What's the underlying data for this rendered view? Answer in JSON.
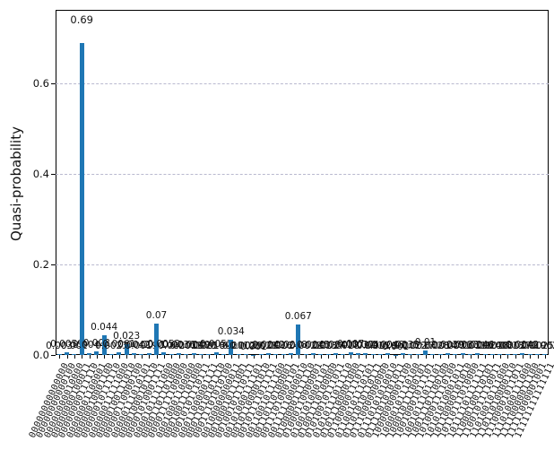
{
  "chart_data": {
    "type": "bar",
    "title": "",
    "xlabel": "",
    "ylabel": "Quasi-probability",
    "ylim": [
      0,
      0.762
    ],
    "grid": "horizontal-dashed",
    "legend": "none",
    "bar_color": "#1f77b4",
    "grid_color": "#b9b9cf",
    "ytick_values": [
      0.0,
      0.2,
      0.4,
      0.6
    ],
    "ytick_labels": [
      "0.0",
      "0.2",
      "0.4",
      "0.6"
    ],
    "x_tick_rotation_deg": 65,
    "categories": [
      "00000000000000",
      "00000000000100",
      "00000000010000",
      "00000000100011",
      "00000000111110",
      "00000001100001",
      "00000010001100",
      "00000010111110",
      "00000011111000",
      "00000100111010",
      "00000110000100",
      "00000111010101",
      "00001000101110",
      "00001010001111",
      "00001011111000",
      "00001101101000",
      "00001111100000",
      "00010001100000",
      "00010011101000",
      "00010101110111",
      "00011000001111",
      "00011010101110",
      "00011101010100",
      "00100000000011",
      "00100010111001",
      "00100101110111",
      "00101000111101",
      "00101100001010",
      "00101111011111",
      "00110010111100",
      "00110110100001",
      "00111010001101",
      "00111110000010",
      "01000001111110",
      "01000110000001",
      "01001010001101",
      "01001110100000",
      "01010010111011",
      "01010111011110",
      "01011100001000",
      "01100000111011",
      "01100101110101",
      "01101010110111",
      "01110000000000",
      "01110101010010",
      "01111010101011",
      "10000000001100",
      "10000101110100",
      "10001011100101",
      "10010001011101",
      "10010111011101",
      "10011101100100",
      "10100011110100",
      "10101010001011",
      "10110000101010",
      "10110111010000",
      "10111101111111",
      "11000100110101",
      "11001011110011",
      "11010010111000",
      "11011010000110",
      "11100001011011",
      "11101000111000",
      "11110000011100",
      "11111000001001",
      "11111111111111"
    ],
    "values": [
      0.003,
      0.0059,
      0.002,
      0.69,
      0.0044,
      0.008,
      0.044,
      0.0023,
      0.0061,
      0.023,
      0.0042,
      0.0019,
      0.0031,
      0.07,
      0.0052,
      0.002,
      0.0036,
      0.0011,
      0.0049,
      0.0025,
      0.0018,
      0.0052,
      0.002,
      0.034,
      0.0012,
      0.0029,
      0.001,
      0.0021,
      0.0042,
      0.0016,
      0.0024,
      0.0038,
      0.067,
      0.0022,
      0.0045,
      0.0013,
      0.0027,
      0.0041,
      0.0018,
      0.007,
      0.0032,
      0.004,
      0.0015,
      0.0026,
      0.0048,
      0.001,
      0.0035,
      0.0022,
      0.0017,
      0.01,
      0.0028,
      0.0014,
      0.0039,
      0.0021,
      0.0033,
      0.0011,
      0.0046,
      0.0024,
      0.0018,
      0.003,
      0.0013,
      0.0027,
      0.0042,
      0.0019,
      0.0025,
      0.002
    ],
    "value_labels": [
      "0.003",
      "0.0059",
      "0.002",
      "0.69",
      "0.0044",
      "0.008",
      "0.044",
      "0.0023",
      "0.0061",
      "0.023",
      "0.0042",
      "0.0019",
      "0.0031",
      "0.07",
      "0.0052",
      "0.002",
      "0.0036",
      "0.0011",
      "0.0049",
      "0.0025",
      "0.0018",
      "0.0052",
      "0.002",
      "0.034",
      "0.0012",
      "0.0029",
      "0.001",
      "0.0021",
      "0.0042",
      "0.0016",
      "0.0024",
      "0.0038",
      "0.067",
      "0.0022",
      "0.0045",
      "0.0013",
      "0.0027",
      "0.0041",
      "0.0018",
      "0.007",
      "0.0032",
      "0.004",
      "0.0015",
      "0.0026",
      "0.0048",
      "0.001",
      "0.0035",
      "0.0022",
      "0.0017",
      "0.01",
      "0.0028",
      "0.0014",
      "0.0039",
      "0.0021",
      "0.0033",
      "0.0011",
      "0.0046",
      "0.0024",
      "0.0018",
      "0.003",
      "0.0013",
      "0.0027",
      "0.0042",
      "0.0019",
      "0.0025",
      "0.002"
    ]
  }
}
